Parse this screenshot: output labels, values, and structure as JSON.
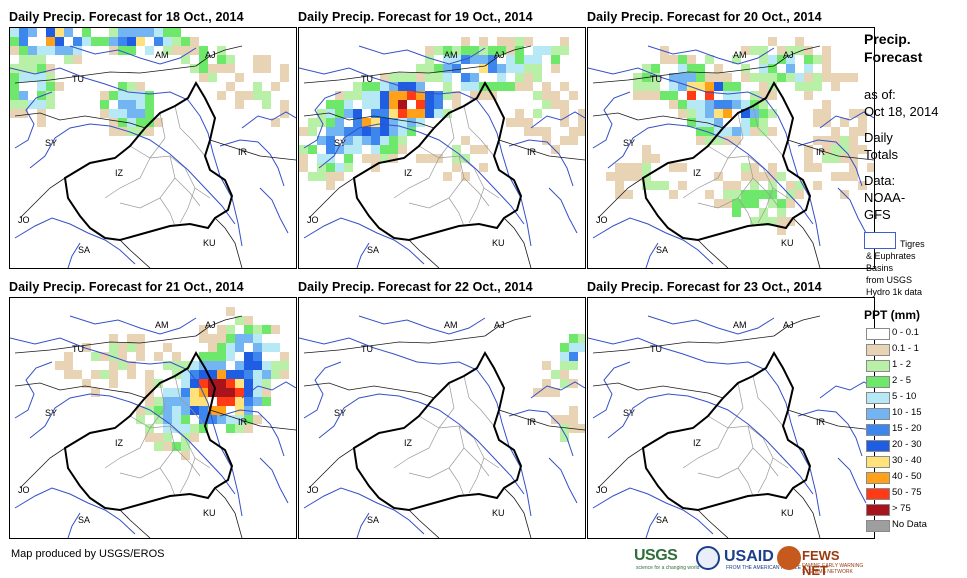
{
  "panels": [
    {
      "title": "Daily Precip. Forecast for 18 Oct., 2014"
    },
    {
      "title": "Daily Precip. Forecast for 19 Oct., 2014"
    },
    {
      "title": "Daily Precip. Forecast for 20 Oct., 2014"
    },
    {
      "title": "Daily Precip. Forecast for 21 Oct., 2014"
    },
    {
      "title": "Daily Precip. Forecast for 22 Oct., 2014"
    },
    {
      "title": "Daily Precip. Forecast for 23 Oct., 2014"
    }
  ],
  "country_labels": [
    "AM",
    "AJ",
    "TU",
    "SY",
    "IR",
    "IZ",
    "JO",
    "SA",
    "KU"
  ],
  "sidebar": {
    "title_line1": "Precip.",
    "title_line2": "Forecast",
    "asof_line1": "as of:",
    "asof_line2": "Oct 18, 2014",
    "totals_line1": "Daily",
    "totals_line2": "Totals",
    "data_line1": "Data:",
    "data_line2": "NOAA-",
    "data_line3": "GFS",
    "basin_line1": "Tigres",
    "basin_line2": "& Euphrates",
    "basin_line3": "Basins",
    "basin_line4": "from USGS",
    "basin_line5": "Hydro 1k data"
  },
  "legend": {
    "title": "PPT (mm)",
    "items": [
      {
        "label": "0 - 0.1",
        "color": "#ffffff"
      },
      {
        "label": "0.1 - 1",
        "color": "#e8d3b5"
      },
      {
        "label": "1 - 2",
        "color": "#b8f0a8"
      },
      {
        "label": "2 - 5",
        "color": "#6ee86a"
      },
      {
        "label": "5 - 10",
        "color": "#b7e8f5"
      },
      {
        "label": "10 - 15",
        "color": "#73b5f2"
      },
      {
        "label": "15 - 20",
        "color": "#3d86ee"
      },
      {
        "label": "20 - 30",
        "color": "#1f5ee2"
      },
      {
        "label": "30 - 40",
        "color": "#ffe27a"
      },
      {
        "label": "40 - 50",
        "color": "#ffa21a"
      },
      {
        "label": "50 - 75",
        "color": "#ff3a14"
      },
      {
        "label": "> 75",
        "color": "#a8141c"
      },
      {
        "label": "No Data",
        "color": "#9e9e9e"
      }
    ]
  },
  "footer": {
    "credit": "Map produced by USGS/EROS"
  },
  "logos": {
    "usgs": "USGS",
    "usgs_sub": "science for a changing world",
    "usaid": "USAID",
    "usaid_sub": "FROM THE AMERICAN PEOPLE",
    "fews": "FEWS NET",
    "fews_sub": "FAMINE EARLY WARNING SYSTEMS NETWORK"
  }
}
